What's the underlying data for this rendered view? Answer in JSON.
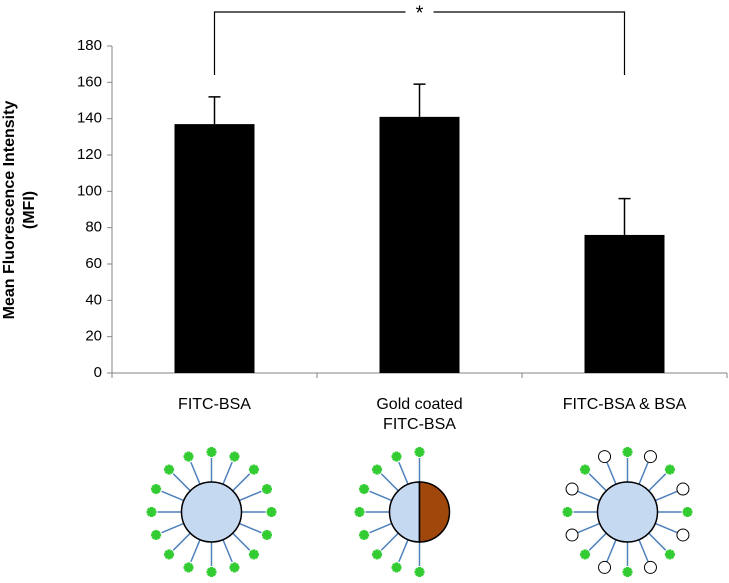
{
  "chart_data": {
    "type": "bar",
    "y_label": "Mean Fluorescence Intensity\n(MFI)",
    "categories": [
      "FITC-BSA",
      "Gold coated\nFITC-BSA",
      "FITC-BSA & BSA"
    ],
    "values": [
      137,
      141,
      76
    ],
    "errors": [
      15,
      18,
      20
    ],
    "color": "#000000",
    "ylim": [
      0,
      180
    ],
    "yticks": [
      0,
      20,
      40,
      60,
      80,
      100,
      120,
      140,
      160,
      180
    ],
    "significance": {
      "from": 0,
      "to": 2,
      "label": "*"
    }
  }
}
